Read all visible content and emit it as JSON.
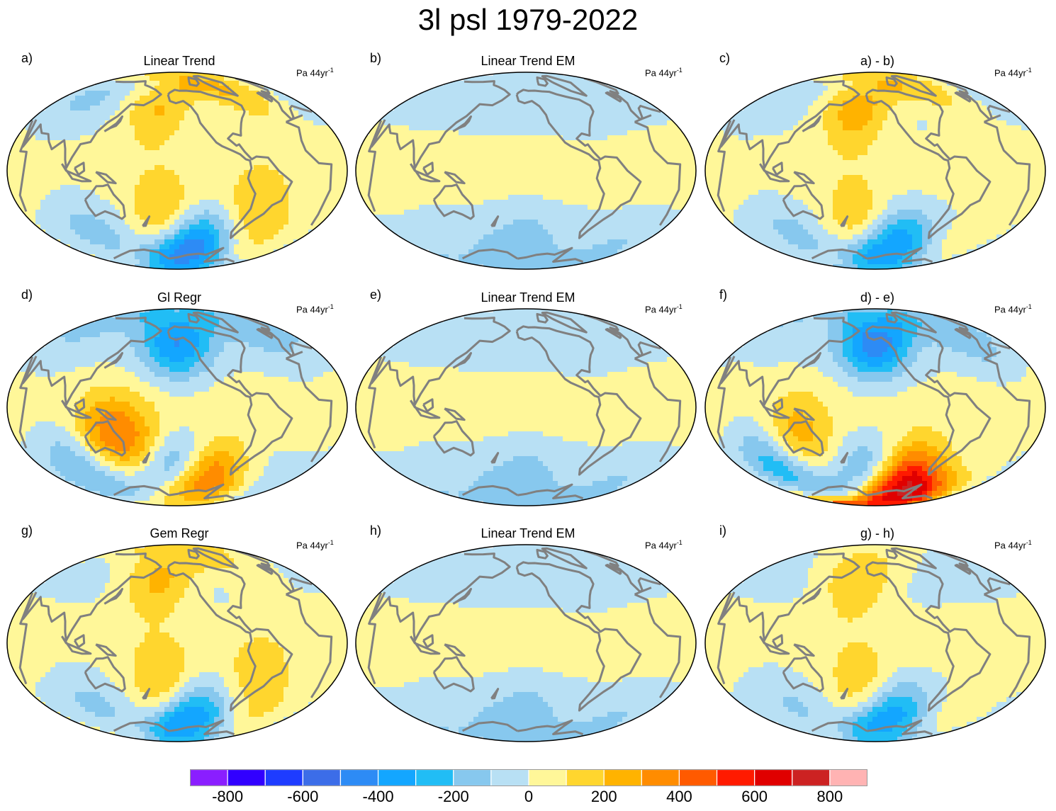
{
  "title": "3l psl 1979-2022",
  "units": {
    "base": "Pa 44yr",
    "exp": "-1"
  },
  "colors": {
    "coast": "#808080",
    "outline": "#000000",
    "levels": [
      "#8a1eff",
      "#3100ff",
      "#1e3cff",
      "#3c6de8",
      "#2d8bf5",
      "#13a6ff",
      "#21bdf5",
      "#87c8ee",
      "#b8e0f4",
      "#fff799",
      "#ffd62e",
      "#ffb300",
      "#ff8c00",
      "#ff5a00",
      "#ff1a00",
      "#e00000",
      "#cc2222",
      "#ffb3b3"
    ]
  },
  "panels": [
    {
      "label": "a)",
      "title": "Linear Trend",
      "field": "trend",
      "row": 0,
      "col": 0
    },
    {
      "label": "b)",
      "title": "Linear Trend EM",
      "field": "em",
      "row": 0,
      "col": 1
    },
    {
      "label": "c)",
      "title": "a) - b)",
      "field": "diff_trend",
      "row": 0,
      "col": 2
    },
    {
      "label": "d)",
      "title": "Gl Regr",
      "field": "gl",
      "row": 1,
      "col": 0
    },
    {
      "label": "e)",
      "title": "Linear Trend EM",
      "field": "em",
      "row": 1,
      "col": 1
    },
    {
      "label": "f)",
      "title": "d) - e)",
      "field": "diff_gl",
      "row": 1,
      "col": 2
    },
    {
      "label": "g)",
      "title": "Gem Regr",
      "field": "gem",
      "row": 2,
      "col": 0
    },
    {
      "label": "h)",
      "title": "Linear Trend EM",
      "field": "em",
      "row": 2,
      "col": 1
    },
    {
      "label": "i)",
      "title": "g) - h)",
      "field": "diff_gem",
      "row": 2,
      "col": 2
    }
  ],
  "colorbar": {
    "ticks": [
      "-800",
      "-600",
      "-400",
      "-200",
      "0",
      "200",
      "400",
      "600",
      "800"
    ]
  },
  "chart_data": {
    "type": "heatmap",
    "title": "3l psl 1979-2022",
    "variable": "psl",
    "period": "1979-2022",
    "units": "Pa 44yr-1",
    "projection": "Pacific-centered global map",
    "contour_levels": [
      -800,
      -700,
      -600,
      -500,
      -400,
      -300,
      -200,
      -100,
      0,
      100,
      200,
      300,
      400,
      500,
      600,
      700,
      800
    ],
    "anomaly_centers_lon_lat_value": {
      "trend": [
        [
          -175,
          52,
          230
        ],
        [
          -40,
          68,
          230
        ],
        [
          -165,
          -38,
          220
        ],
        [
          -120,
          -68,
          -560
        ],
        [
          -70,
          -30,
          170
        ],
        [
          100,
          -45,
          -120
        ],
        [
          -20,
          -50,
          110
        ],
        [
          70,
          60,
          -110
        ]
      ],
      "em": [
        [
          -150,
          -63,
          -130
        ],
        [
          0,
          -62,
          -90
        ],
        [
          -80,
          65,
          -60
        ],
        [
          120,
          -65,
          -60
        ]
      ],
      "diff_trend": [
        [
          -175,
          50,
          280
        ],
        [
          -40,
          70,
          180
        ],
        [
          -170,
          -42,
          200
        ],
        [
          -120,
          -67,
          -450
        ],
        [
          100,
          -50,
          -110
        ],
        [
          -20,
          -52,
          80
        ],
        [
          60,
          60,
          -80
        ]
      ],
      "gl": [
        [
          -150,
          55,
          -380
        ],
        [
          -15,
          57,
          -120
        ],
        [
          140,
          -20,
          270
        ],
        [
          170,
          -28,
          200
        ],
        [
          -155,
          -55,
          -320
        ],
        [
          -105,
          -63,
          520
        ],
        [
          80,
          -45,
          -180
        ],
        [
          60,
          60,
          -80
        ]
      ],
      "diff_gl": [
        [
          -150,
          55,
          -440
        ],
        [
          -15,
          55,
          -150
        ],
        [
          135,
          -22,
          220
        ],
        [
          -160,
          -60,
          -260
        ],
        [
          -105,
          -62,
          620
        ],
        [
          80,
          -45,
          -240
        ],
        [
          -60,
          -75,
          240
        ],
        [
          0,
          -75,
          200
        ]
      ],
      "gem": [
        [
          -175,
          53,
          250
        ],
        [
          -165,
          -35,
          230
        ],
        [
          -125,
          -66,
          -470
        ],
        [
          -70,
          -28,
          150
        ],
        [
          100,
          -45,
          -100
        ],
        [
          -40,
          68,
          120
        ],
        [
          -20,
          -52,
          110
        ]
      ],
      "diff_gem": [
        [
          -175,
          52,
          220
        ],
        [
          -165,
          -38,
          200
        ],
        [
          -125,
          -66,
          -420
        ],
        [
          100,
          -48,
          -90
        ],
        [
          -30,
          -55,
          90
        ]
      ]
    }
  }
}
